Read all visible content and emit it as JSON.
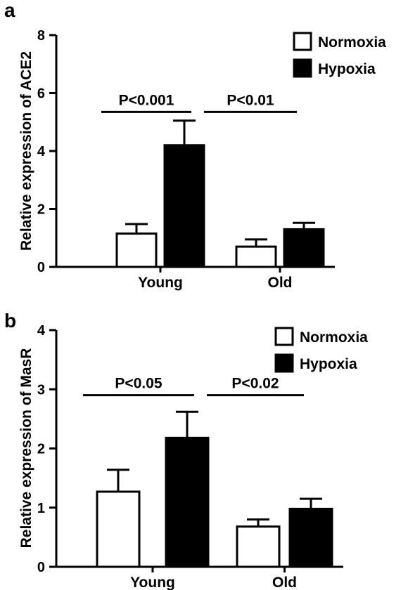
{
  "chart_data": [
    {
      "panel_label": "a",
      "type": "bar",
      "categories": [
        "Young",
        "Old"
      ],
      "series": [
        {
          "name": "Normoxia",
          "values": [
            1.15,
            0.7
          ],
          "errors": [
            0.33,
            0.25
          ],
          "fill": "#ffffff"
        },
        {
          "name": "Hypoxia",
          "values": [
            4.2,
            1.3
          ],
          "errors": [
            0.85,
            0.22
          ],
          "fill": "#000000"
        }
      ],
      "ylabel": "Relative expression of ACE2",
      "ylim": [
        0,
        8
      ],
      "yticks": [
        "0",
        "2",
        "4",
        "6",
        "8"
      ],
      "legend_position": "top-right",
      "annotations": [
        {
          "text": "P<0.001",
          "from_category": "Young",
          "from_series": "Normoxia",
          "to_category": "Young",
          "to_series": "Hypoxia",
          "y": 5.35
        },
        {
          "text": "P<0.01",
          "from_category": "Young",
          "from_series": "Hypoxia",
          "to_category": "Old",
          "to_series": "Hypoxia",
          "y": 5.35
        }
      ]
    },
    {
      "panel_label": "b",
      "type": "bar",
      "categories": [
        "Young",
        "Old"
      ],
      "series": [
        {
          "name": "Normoxia",
          "values": [
            1.27,
            0.68
          ],
          "errors": [
            0.37,
            0.12
          ],
          "fill": "#ffffff"
        },
        {
          "name": "Hypoxia",
          "values": [
            2.18,
            0.98
          ],
          "errors": [
            0.44,
            0.17
          ],
          "fill": "#000000"
        }
      ],
      "ylabel": "Relative expression of MasR",
      "ylim": [
        0,
        4
      ],
      "yticks": [
        "0",
        "1",
        "2",
        "3",
        "4"
      ],
      "legend_position": "top-right",
      "annotations": [
        {
          "text": "P<0.05",
          "from_category": "Young",
          "from_series": "Normoxia",
          "to_category": "Young",
          "to_series": "Hypoxia",
          "y": 2.9
        },
        {
          "text": "P<0.02",
          "from_category": "Young",
          "from_series": "Hypoxia",
          "to_category": "Old",
          "to_series": "Hypoxia",
          "y": 2.9
        }
      ]
    }
  ]
}
